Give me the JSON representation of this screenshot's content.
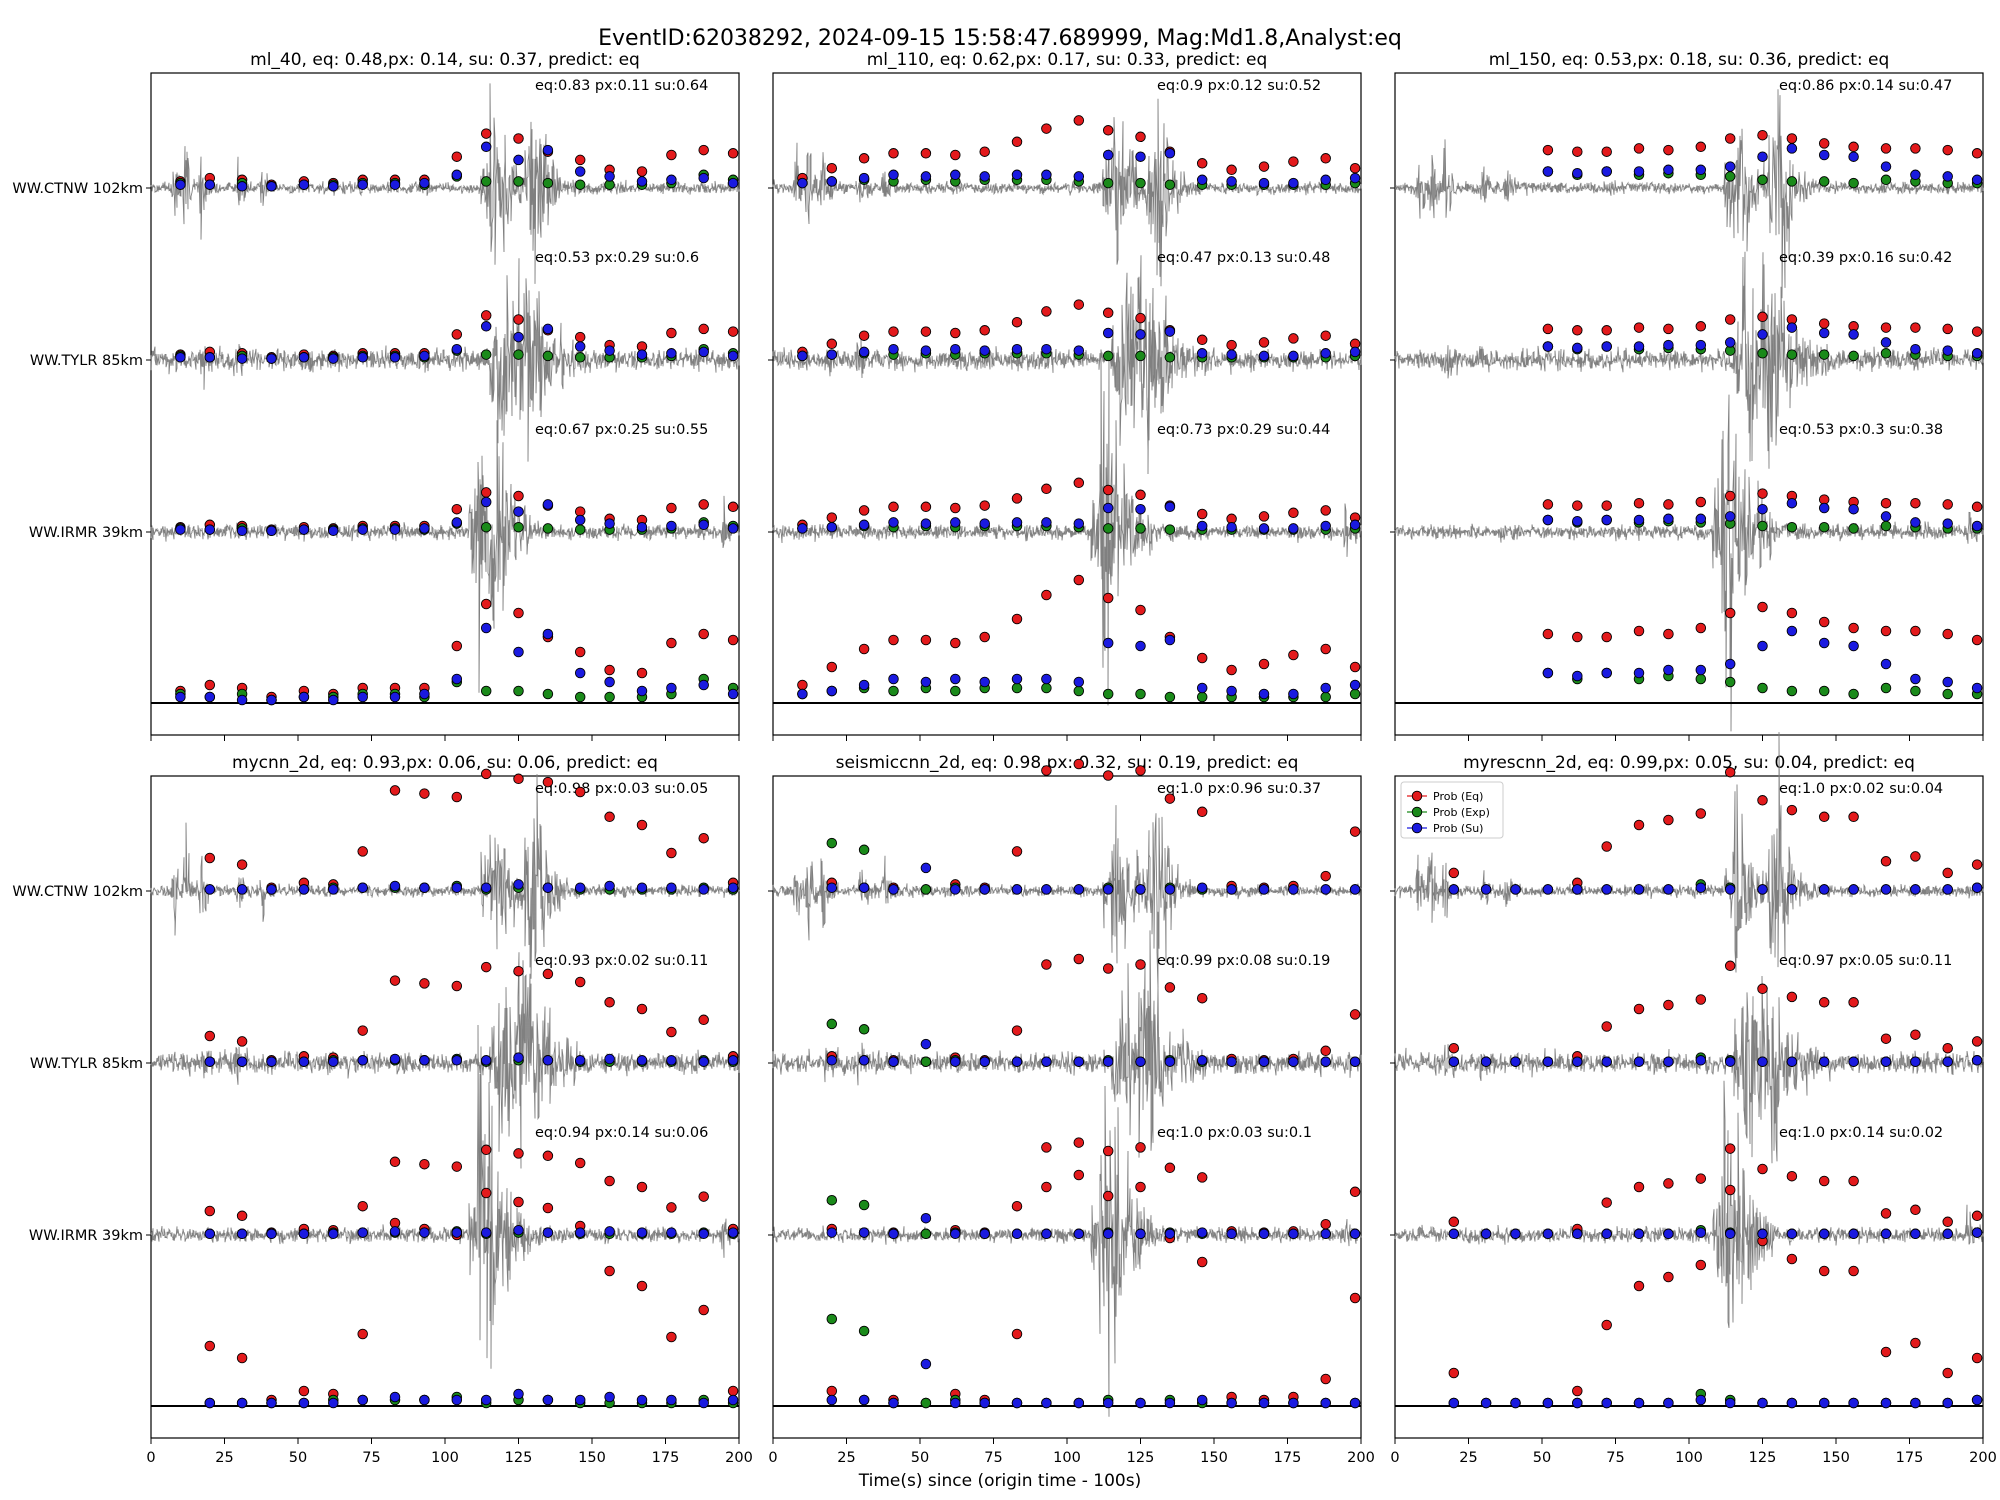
{
  "chart_data": {
    "type": "scatter",
    "title": "EventID:62038292, 2024-09-15 15:58:47.689999, Mag:Md1.8,Analyst:eq",
    "xlabel": "Time(s) since (origin time - 100s)",
    "xlim": [
      0,
      200
    ],
    "xticks": [
      "0",
      "25",
      "50",
      "75",
      "100",
      "125",
      "150",
      "175",
      "200"
    ],
    "stations": [
      "WW.CTNW 102km",
      "WW.TYLR 85km",
      "WW.IRMR 39km"
    ],
    "legend": {
      "placement": "upper-left",
      "entries": [
        "Prob (Eq)",
        "Prob (Exp)",
        "Prob (Su)"
      ]
    },
    "colors": {
      "eq": "#e31a1c",
      "exp": "#1a8a1a",
      "su": "#1a1ae0",
      "waveform": "#808080"
    },
    "panels": [
      {
        "title": "ml_40, eq: 0.48,px: 0.14, su: 0.37, predict: eq",
        "annotations": [
          "eq:0.83  px:0.11  su:0.64",
          "eq:0.53  px:0.29  su:0.6",
          "eq:0.67  px:0.25  su:0.55"
        ],
        "summary": {
          "x": [
            10,
            20,
            31,
            41,
            52,
            62,
            72,
            83,
            93,
            104,
            114,
            125,
            135,
            146,
            156,
            167,
            177,
            188,
            198
          ],
          "eq": [
            0.04,
            0.06,
            0.05,
            0.02,
            0.04,
            0.03,
            0.05,
            0.05,
            0.05,
            0.19,
            0.33,
            0.3,
            0.22,
            0.17,
            0.11,
            0.1,
            0.2,
            0.23,
            0.21
          ],
          "exp": [
            0.03,
            0.02,
            0.03,
            0.01,
            0.02,
            0.02,
            0.03,
            0.03,
            0.02,
            0.07,
            0.04,
            0.04,
            0.03,
            0.02,
            0.02,
            0.02,
            0.03,
            0.08,
            0.05
          ],
          "su": [
            0.02,
            0.02,
            0.01,
            0.01,
            0.02,
            0.01,
            0.02,
            0.02,
            0.03,
            0.08,
            0.25,
            0.17,
            0.23,
            0.1,
            0.07,
            0.04,
            0.05,
            0.06,
            0.03
          ]
        }
      },
      {
        "title": "ml_110, eq: 0.62,px: 0.17, su: 0.33, predict: eq",
        "annotations": [
          "eq:0.9   px:0.12  su:0.52",
          "eq:0.47  px:0.13  su:0.48",
          "eq:0.73  px:0.29  su:0.44"
        ],
        "summary": {
          "x": [
            10,
            20,
            31,
            41,
            52,
            62,
            72,
            83,
            93,
            104,
            114,
            125,
            135,
            146,
            156,
            167,
            177,
            188,
            198
          ],
          "eq": [
            0.06,
            0.12,
            0.18,
            0.21,
            0.21,
            0.2,
            0.22,
            0.28,
            0.36,
            0.41,
            0.35,
            0.31,
            0.22,
            0.15,
            0.11,
            0.13,
            0.16,
            0.18,
            0.12
          ],
          "exp": [
            0.03,
            0.04,
            0.05,
            0.04,
            0.05,
            0.04,
            0.05,
            0.05,
            0.05,
            0.04,
            0.03,
            0.03,
            0.02,
            0.02,
            0.02,
            0.02,
            0.02,
            0.02,
            0.03
          ],
          "su": [
            0.03,
            0.04,
            0.06,
            0.08,
            0.07,
            0.08,
            0.07,
            0.08,
            0.08,
            0.07,
            0.2,
            0.19,
            0.21,
            0.05,
            0.04,
            0.03,
            0.03,
            0.05,
            0.06
          ]
        }
      },
      {
        "title": "ml_150, eq: 0.53,px: 0.18, su: 0.36, predict: eq",
        "annotations": [
          "eq:0.86  px:0.14  su:0.47",
          "eq:0.39  px:0.16  su:0.42",
          "eq:0.53  px:0.3    su:0.38"
        ],
        "summary": {
          "x": [
            10,
            20,
            31,
            41,
            52,
            62,
            72,
            83,
            93,
            104,
            114,
            125,
            135,
            146,
            156,
            167,
            177,
            188,
            198
          ],
          "eq": [
            null,
            null,
            null,
            null,
            0.23,
            0.22,
            0.22,
            0.24,
            0.23,
            0.25,
            0.3,
            0.32,
            0.3,
            0.27,
            0.25,
            0.24,
            0.24,
            0.23,
            0.21
          ],
          "exp": [
            null,
            null,
            null,
            null,
            0.1,
            0.08,
            0.1,
            0.08,
            0.09,
            0.08,
            0.07,
            0.05,
            0.04,
            0.04,
            0.03,
            0.05,
            0.04,
            0.03,
            0.03
          ],
          "su": [
            null,
            null,
            null,
            null,
            0.1,
            0.09,
            0.1,
            0.1,
            0.11,
            0.11,
            0.13,
            0.19,
            0.24,
            0.2,
            0.19,
            0.13,
            0.08,
            0.07,
            0.05
          ]
        }
      },
      {
        "title": "mycnn_2d, eq: 0.93,px: 0.06, su: 0.06, predict: eq",
        "annotations": [
          "eq:0.98  px:0.03  su:0.05",
          "eq:0.93  px:0.02  su:0.11",
          "eq:0.94  px:0.14  su:0.06"
        ],
        "summary": {
          "x": [
            10,
            20,
            31,
            41,
            52,
            62,
            72,
            83,
            93,
            104,
            114,
            125,
            135,
            146,
            156,
            167,
            177,
            188,
            198
          ],
          "eq": [
            null,
            0.2,
            0.16,
            0.02,
            0.05,
            0.04,
            0.24,
            0.61,
            0.59,
            0.57,
            0.71,
            0.68,
            0.66,
            0.6,
            0.45,
            0.4,
            0.23,
            0.32,
            0.05
          ],
          "exp": [
            null,
            0.01,
            0.01,
            0.01,
            0.01,
            0.02,
            0.02,
            0.02,
            0.02,
            0.03,
            0.01,
            0.02,
            0.02,
            0.01,
            0.01,
            0.01,
            0.01,
            0.02,
            0.01
          ],
          "su": [
            null,
            0.01,
            0.01,
            0.01,
            0.01,
            0.01,
            0.02,
            0.03,
            0.02,
            0.02,
            0.02,
            0.04,
            0.02,
            0.02,
            0.03,
            0.02,
            0.02,
            0.01,
            0.02
          ]
        }
      },
      {
        "title": "seismiccnn_2d, eq: 0.98,px: 0.32, su: 0.19, predict: eq",
        "annotations": [
          "eq:1.0    px:0.96  su:0.37",
          "eq:0.99  px:0.08  su:0.19",
          "eq:1.0    px:0.03  su:0.1"
        ],
        "summary": {
          "x": [
            10,
            20,
            31,
            41,
            52,
            62,
            72,
            83,
            93,
            104,
            114,
            125,
            135,
            146,
            156,
            167,
            177,
            188,
            198
          ],
          "eq": [
            null,
            0.05,
            0.02,
            0.02,
            0.01,
            0.04,
            0.02,
            0.24,
            0.73,
            0.77,
            0.7,
            0.73,
            0.56,
            0.48,
            0.03,
            0.02,
            0.03,
            0.09,
            0.36
          ],
          "exp": [
            null,
            0.29,
            0.25,
            0.01,
            0.01,
            0.02,
            0.01,
            0.01,
            0.01,
            0.01,
            0.02,
            0.01,
            0.02,
            0.01,
            0.01,
            0.01,
            0.01,
            0.01,
            0.01
          ],
          "su": [
            null,
            0.02,
            0.02,
            0.01,
            0.14,
            0.01,
            0.01,
            0.01,
            0.01,
            0.01,
            0.01,
            0.01,
            0.01,
            0.02,
            0.01,
            0.01,
            0.01,
            0.01,
            0.01
          ]
        }
      },
      {
        "title": "myrescnn_2d, eq: 0.99,px: 0.05, su: 0.04, predict: eq",
        "annotations": [
          "eq:1.0    px:0.02  su:0.04",
          "eq:0.97  px:0.05  su:0.11",
          "eq:1.0    px:0.14  su:0.02"
        ],
        "summary": {
          "x": [
            10,
            20,
            31,
            41,
            52,
            62,
            72,
            83,
            93,
            104,
            114,
            125,
            135,
            146,
            156,
            167,
            177,
            188,
            198
          ],
          "eq": [
            null,
            0.11,
            null,
            null,
            null,
            0.05,
            0.27,
            0.4,
            0.43,
            0.47,
            0.72,
            0.55,
            0.49,
            0.45,
            0.45,
            0.18,
            0.21,
            0.11,
            0.16
          ],
          "exp": [
            null,
            0.01,
            0.01,
            0.01,
            0.01,
            0.01,
            0.01,
            0.01,
            0.01,
            0.04,
            0.02,
            0.01,
            0.01,
            0.01,
            0.01,
            0.01,
            0.01,
            0.01,
            0.02
          ],
          "su": [
            null,
            0.01,
            0.01,
            0.01,
            0.01,
            0.01,
            0.01,
            0.01,
            0.01,
            0.02,
            0.01,
            0.01,
            0.01,
            0.01,
            0.01,
            0.01,
            0.01,
            0.01,
            0.02
          ]
        }
      }
    ]
  }
}
